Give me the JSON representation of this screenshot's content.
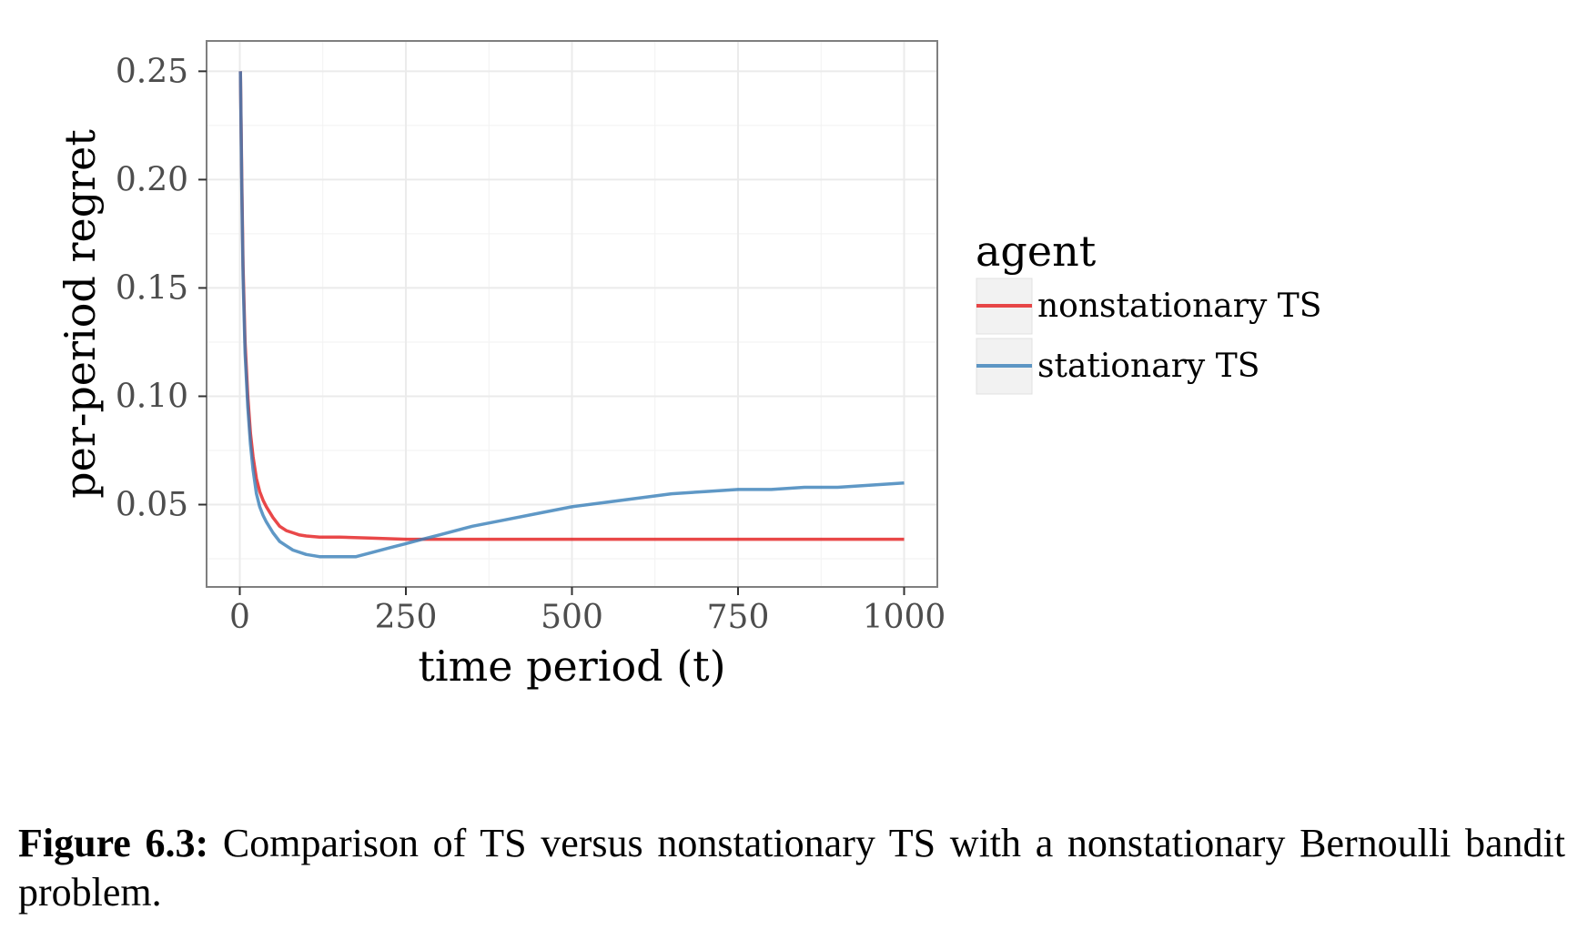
{
  "chart_data": {
    "type": "line",
    "xlabel": "time period (t)",
    "ylabel": "per-period regret",
    "xlim": [
      -50,
      1050
    ],
    "ylim": [
      0.012,
      0.264
    ],
    "xticks": [
      0,
      250,
      500,
      750,
      1000
    ],
    "xtick_labels": [
      "0",
      "250",
      "500",
      "750",
      "1000"
    ],
    "yticks": [
      0.05,
      0.1,
      0.15,
      0.2,
      0.25
    ],
    "ytick_labels": [
      "0.05",
      "0.10",
      "0.15",
      "0.20",
      "0.25"
    ],
    "grid": true,
    "legend": {
      "title": "agent",
      "position": "right"
    },
    "series": [
      {
        "name": "nonstationary TS",
        "color": "#e41a1c",
        "x": [
          1,
          3,
          5,
          8,
          12,
          16,
          20,
          25,
          30,
          35,
          40,
          50,
          60,
          70,
          80,
          90,
          100,
          120,
          150,
          200,
          250,
          300,
          400,
          500,
          600,
          700,
          800,
          900,
          1000
        ],
        "y": [
          0.25,
          0.2,
          0.16,
          0.125,
          0.1,
          0.083,
          0.072,
          0.062,
          0.056,
          0.052,
          0.049,
          0.044,
          0.04,
          0.038,
          0.037,
          0.036,
          0.0355,
          0.035,
          0.035,
          0.0345,
          0.034,
          0.034,
          0.034,
          0.034,
          0.034,
          0.034,
          0.034,
          0.034,
          0.034
        ]
      },
      {
        "name": "stationary TS",
        "color": "#377eb8",
        "x": [
          1,
          3,
          5,
          8,
          12,
          16,
          20,
          25,
          30,
          35,
          40,
          50,
          60,
          70,
          80,
          100,
          120,
          150,
          175,
          200,
          225,
          250,
          275,
          300,
          350,
          400,
          450,
          500,
          550,
          600,
          650,
          700,
          750,
          800,
          850,
          900,
          950,
          1000
        ],
        "y": [
          0.25,
          0.195,
          0.155,
          0.12,
          0.095,
          0.078,
          0.066,
          0.055,
          0.049,
          0.045,
          0.042,
          0.037,
          0.033,
          0.031,
          0.029,
          0.027,
          0.026,
          0.026,
          0.026,
          0.028,
          0.03,
          0.032,
          0.034,
          0.036,
          0.04,
          0.043,
          0.046,
          0.049,
          0.051,
          0.053,
          0.055,
          0.056,
          0.057,
          0.057,
          0.058,
          0.058,
          0.059,
          0.06
        ]
      }
    ]
  },
  "caption": {
    "label": "Figure 6.3:",
    "text": " Comparison of TS versus nonstationary TS with a nonstationary Bernoulli bandit problem."
  }
}
